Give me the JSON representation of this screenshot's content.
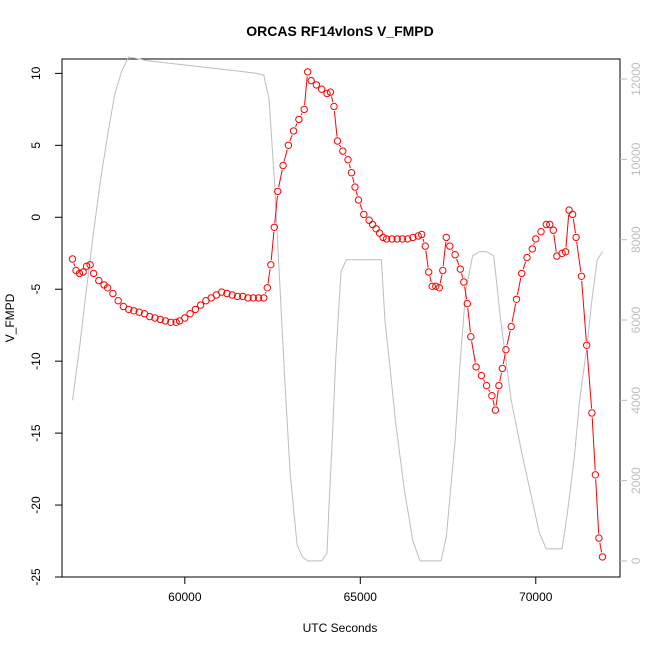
{
  "chart_data": {
    "type": "line",
    "title": "ORCAS RF14vlonS V_FMPD",
    "xlabel": "UTC Seconds",
    "ylabel": "V_FMPD",
    "xlim": [
      56500,
      72400
    ],
    "ylim": [
      -25,
      11
    ],
    "y2lim": [
      -400,
      12500
    ],
    "x_ticks": [
      60000,
      65000,
      70000
    ],
    "x_tick_labels": [
      "60000",
      "65000",
      "70000"
    ],
    "y_ticks": [
      -25,
      -20,
      -15,
      -10,
      -5,
      0,
      5,
      10
    ],
    "y_tick_labels": [
      "-25",
      "-20",
      "-15",
      "-10",
      "-5",
      "0",
      "5",
      "10"
    ],
    "y2_ticks": [
      0,
      2000,
      4000,
      6000,
      8000,
      10000,
      12000
    ],
    "y2_tick_labels": [
      "0",
      "2000",
      "4000",
      "6000",
      "8000",
      "10000",
      "12000"
    ],
    "grid": false,
    "series": [
      {
        "style": "red-circles-line",
        "color": "#ff0000",
        "axis": "left",
        "x": [
          56800,
          56900,
          57000,
          57100,
          57200,
          57300,
          57400,
          57550,
          57700,
          57800,
          57950,
          58100,
          58250,
          58400,
          58550,
          58700,
          58850,
          59000,
          59150,
          59300,
          59450,
          59600,
          59750,
          59850,
          60000,
          60150,
          60300,
          60450,
          60600,
          60750,
          60900,
          61050,
          61200,
          61350,
          61500,
          61650,
          61800,
          61950,
          62100,
          62250,
          62350,
          62450,
          62550,
          62650,
          62800,
          62950,
          63100,
          63250,
          63400,
          63500,
          63600,
          63750,
          63900,
          64050,
          64150,
          64250,
          64350,
          64500,
          64650,
          64750,
          64850,
          64950,
          65100,
          65250,
          65350,
          65450,
          65550,
          65650,
          65750,
          65900,
          66050,
          66200,
          66350,
          66500,
          66650,
          66750,
          66850,
          66950,
          67050,
          67150,
          67250,
          67350,
          67450,
          67550,
          67700,
          67850,
          67950,
          68050,
          68150,
          68300,
          68450,
          68600,
          68750,
          68850,
          68950,
          69050,
          69150,
          69300,
          69450,
          69600,
          69750,
          69900,
          70000,
          70150,
          70300,
          70400,
          70500,
          70600,
          70750,
          70850,
          70950,
          71050,
          71150,
          71300,
          71450,
          71600,
          71700,
          71800,
          71900
        ],
        "y": [
          -2.9,
          -3.7,
          -3.9,
          -3.8,
          -3.4,
          -3.3,
          -3.9,
          -4.4,
          -4.7,
          -4.9,
          -5.3,
          -5.8,
          -6.2,
          -6.4,
          -6.5,
          -6.6,
          -6.7,
          -6.9,
          -7.0,
          -7.1,
          -7.2,
          -7.3,
          -7.3,
          -7.2,
          -7.0,
          -6.7,
          -6.4,
          -6.1,
          -5.8,
          -5.6,
          -5.4,
          -5.2,
          -5.3,
          -5.4,
          -5.5,
          -5.5,
          -5.6,
          -5.6,
          -5.6,
          -5.6,
          -4.9,
          -3.3,
          -0.7,
          1.8,
          3.6,
          5.0,
          6.0,
          6.8,
          7.5,
          10.1,
          9.5,
          9.2,
          8.9,
          8.6,
          8.7,
          7.7,
          5.3,
          4.6,
          4.0,
          3.1,
          2.1,
          1.2,
          0.2,
          -0.2,
          -0.5,
          -0.8,
          -1.1,
          -1.4,
          -1.5,
          -1.5,
          -1.5,
          -1.5,
          -1.5,
          -1.4,
          -1.3,
          -1.2,
          -2.0,
          -3.8,
          -4.8,
          -4.8,
          -4.9,
          -3.7,
          -1.4,
          -2.0,
          -2.6,
          -3.6,
          -4.5,
          -6.0,
          -8.3,
          -10.4,
          -11.0,
          -11.7,
          -12.4,
          -13.4,
          -11.7,
          -10.5,
          -9.2,
          -7.6,
          -5.7,
          -3.9,
          -2.8,
          -2.2,
          -1.5,
          -1.0,
          -0.5,
          -0.5,
          -0.9,
          -2.7,
          -2.5,
          -2.4,
          0.5,
          0.2,
          -1.4,
          -4.1,
          -8.9,
          -13.6,
          -17.9,
          -22.3,
          -23.6
        ]
      },
      {
        "style": "gray-line",
        "color": "#bebebe",
        "axis": "right",
        "x": [
          56800,
          57000,
          57200,
          57400,
          57600,
          57800,
          58000,
          58200,
          58400,
          58700,
          59000,
          59500,
          60000,
          60500,
          61000,
          61500,
          62000,
          62250,
          62400,
          62550,
          62700,
          62850,
          63000,
          63200,
          63350,
          63500,
          63700,
          63900,
          64050,
          64100,
          64200,
          64300,
          64450,
          64600,
          65050,
          65300,
          65600,
          65700,
          65850,
          66000,
          66250,
          66500,
          66700,
          66850,
          67000,
          67300,
          67450,
          67700,
          67850,
          68000,
          68200,
          68400,
          68600,
          68800,
          69000,
          69300,
          69600,
          69900,
          70100,
          70300,
          70450,
          70750,
          70900,
          71100,
          71250,
          71450,
          71600,
          71750,
          71900
        ],
        "y": [
          4000,
          5300,
          6800,
          8200,
          9500,
          10600,
          11600,
          12200,
          12550,
          12500,
          12450,
          12400,
          12350,
          12300,
          12250,
          12200,
          12150,
          12100,
          11500,
          9500,
          7000,
          4500,
          2200,
          400,
          100,
          0,
          0,
          0,
          200,
          1200,
          3000,
          5000,
          7200,
          7500,
          7500,
          7500,
          7500,
          6000,
          4800,
          3500,
          1800,
          500,
          0,
          0,
          0,
          0,
          600,
          3000,
          5000,
          6700,
          7600,
          7700,
          7700,
          7600,
          6000,
          4000,
          2700,
          1500,
          700,
          300,
          300,
          300,
          1200,
          2600,
          4000,
          5300,
          6500,
          7500,
          7700
        ]
      }
    ]
  }
}
